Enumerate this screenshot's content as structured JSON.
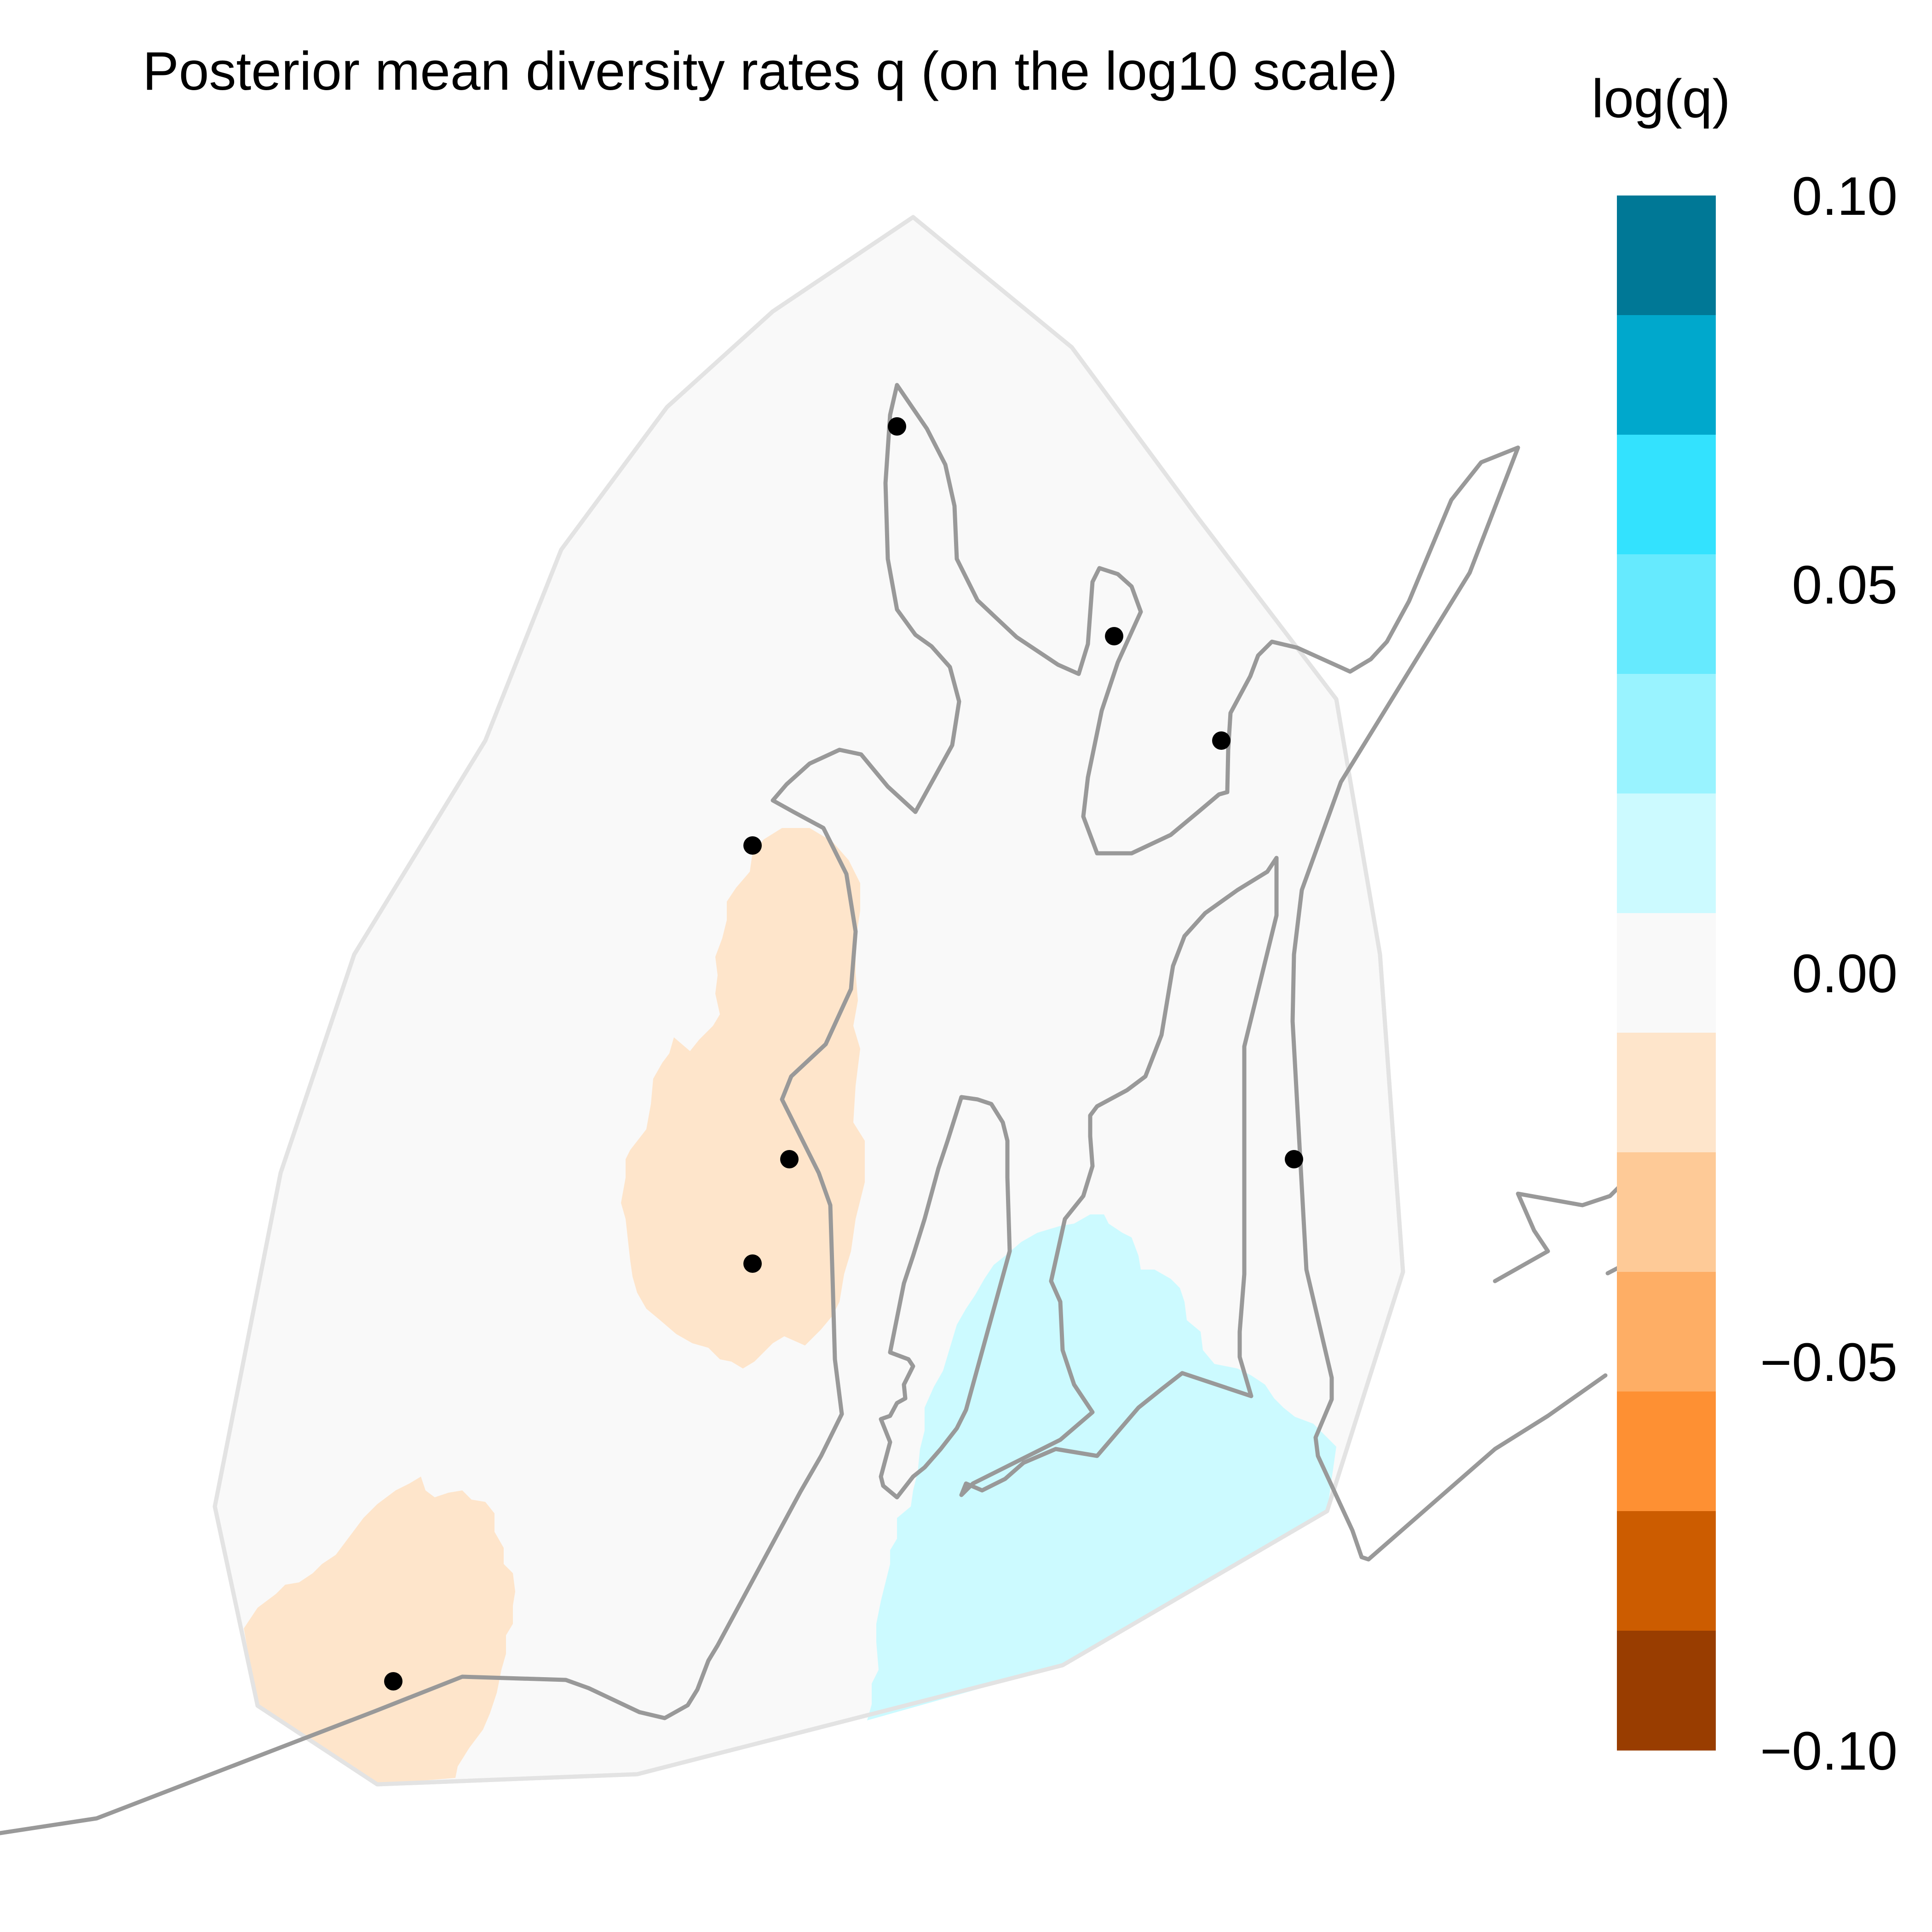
{
  "title": "Posterior mean diversity rates q (on the log10 scale)",
  "legend": {
    "title": "log(q)",
    "ticks": [
      "0.10",
      "0.05",
      "0.00",
      "−0.05",
      "−0.10"
    ],
    "bins": [
      {
        "color": "#007896"
      },
      {
        "color": "#00A8CC"
      },
      {
        "color": "#33E2FE"
      },
      {
        "color": "#66EAFE"
      },
      {
        "color": "#99F3FF"
      },
      {
        "color": "#CCFAFF"
      },
      {
        "color": "#F9F9F9"
      },
      {
        "color": "#FEE5CB"
      },
      {
        "color": "#FECA97"
      },
      {
        "color": "#FEAE65"
      },
      {
        "color": "#FE9033"
      },
      {
        "color": "#CC5C00"
      },
      {
        "color": "#993D00"
      }
    ]
  },
  "colors": {
    "habitat_fill": "#F9F9F9",
    "habitat_outline": "#E3E3E3",
    "coastline": "#999999",
    "low_rate_fill": "#FEE5CB",
    "high_rate_fill": "#CCFAFF",
    "sample_point": "#000000"
  }
}
